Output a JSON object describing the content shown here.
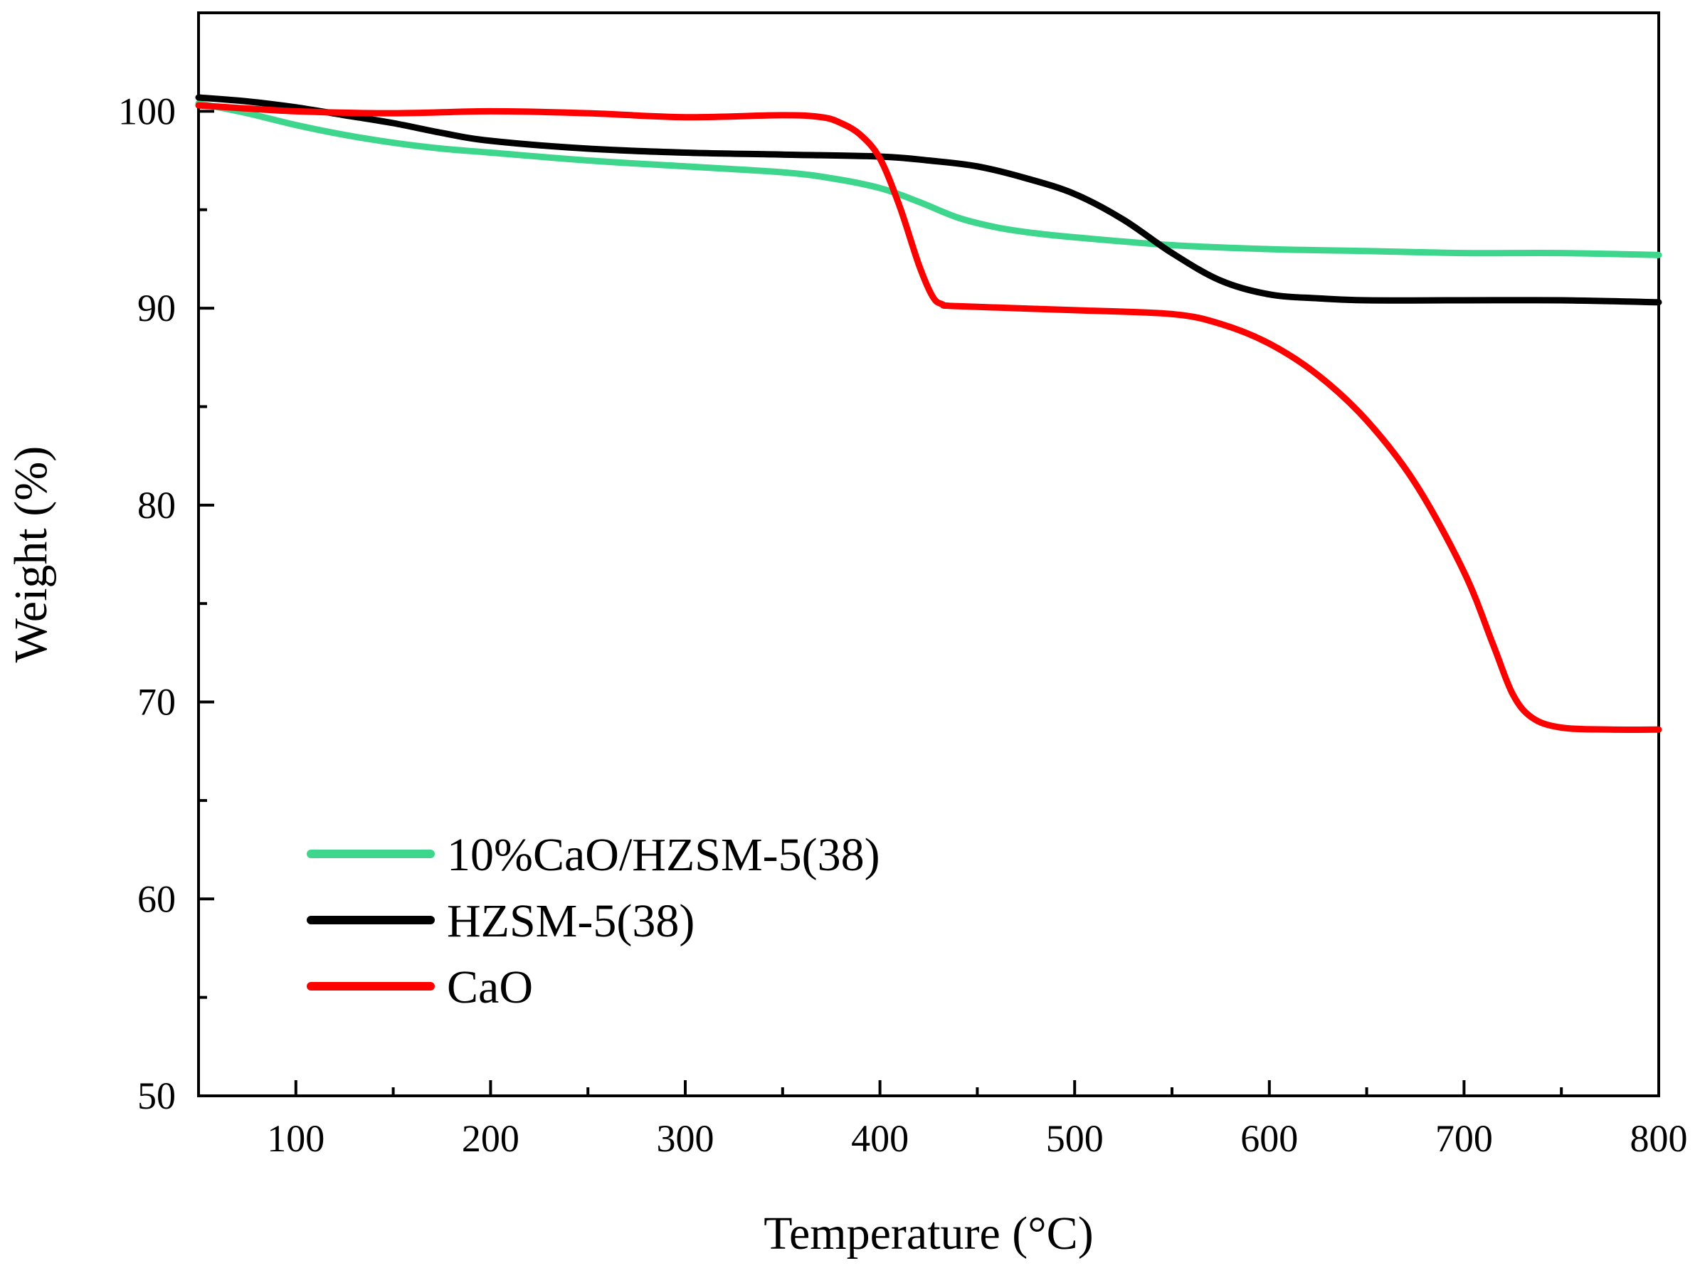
{
  "chart_data": {
    "type": "line",
    "xlabel": "Temperature (°C)",
    "ylabel": "Weight (%)",
    "xlim": [
      50,
      800
    ],
    "ylim": [
      50,
      105
    ],
    "xticks": [
      100,
      200,
      300,
      400,
      500,
      600,
      700,
      800
    ],
    "yticks": [
      50,
      60,
      70,
      80,
      90,
      100
    ],
    "legend_position": "bottom-left",
    "grid": false,
    "series": [
      {
        "name": "10%CaO/HZSM-5(38)",
        "color": "#3dd68c",
        "x": [
          50,
          75,
          100,
          125,
          150,
          175,
          200,
          250,
          300,
          350,
          375,
          400,
          420,
          440,
          460,
          480,
          500,
          550,
          600,
          650,
          700,
          750,
          800
        ],
        "y": [
          100.4,
          99.9,
          99.3,
          98.8,
          98.4,
          98.1,
          97.9,
          97.5,
          97.2,
          96.9,
          96.6,
          96.1,
          95.4,
          94.6,
          94.1,
          93.8,
          93.6,
          93.2,
          93.0,
          92.9,
          92.8,
          92.8,
          92.7
        ]
      },
      {
        "name": "HZSM-5(38)",
        "color": "#000000",
        "x": [
          50,
          75,
          100,
          125,
          150,
          175,
          200,
          250,
          300,
          350,
          400,
          425,
          450,
          475,
          500,
          525,
          550,
          575,
          600,
          625,
          650,
          700,
          750,
          800
        ],
        "y": [
          100.7,
          100.5,
          100.2,
          99.8,
          99.4,
          98.9,
          98.5,
          98.1,
          97.9,
          97.8,
          97.7,
          97.5,
          97.2,
          96.6,
          95.8,
          94.5,
          92.8,
          91.4,
          90.7,
          90.5,
          90.4,
          90.4,
          90.4,
          90.3
        ]
      },
      {
        "name": "CaO",
        "color": "#ff0000",
        "x": [
          50,
          100,
          150,
          200,
          250,
          300,
          350,
          370,
          380,
          390,
          400,
          410,
          420,
          427,
          432,
          440,
          500,
          550,
          575,
          600,
          625,
          650,
          675,
          700,
          715,
          725,
          735,
          750,
          775,
          800
        ],
        "y": [
          100.3,
          100.0,
          99.9,
          100.0,
          99.9,
          99.7,
          99.8,
          99.7,
          99.4,
          98.8,
          97.6,
          95.2,
          92.2,
          90.6,
          90.2,
          90.1,
          89.9,
          89.7,
          89.2,
          88.2,
          86.6,
          84.3,
          81.1,
          76.6,
          72.9,
          70.4,
          69.2,
          68.7,
          68.6,
          68.6
        ]
      }
    ]
  }
}
